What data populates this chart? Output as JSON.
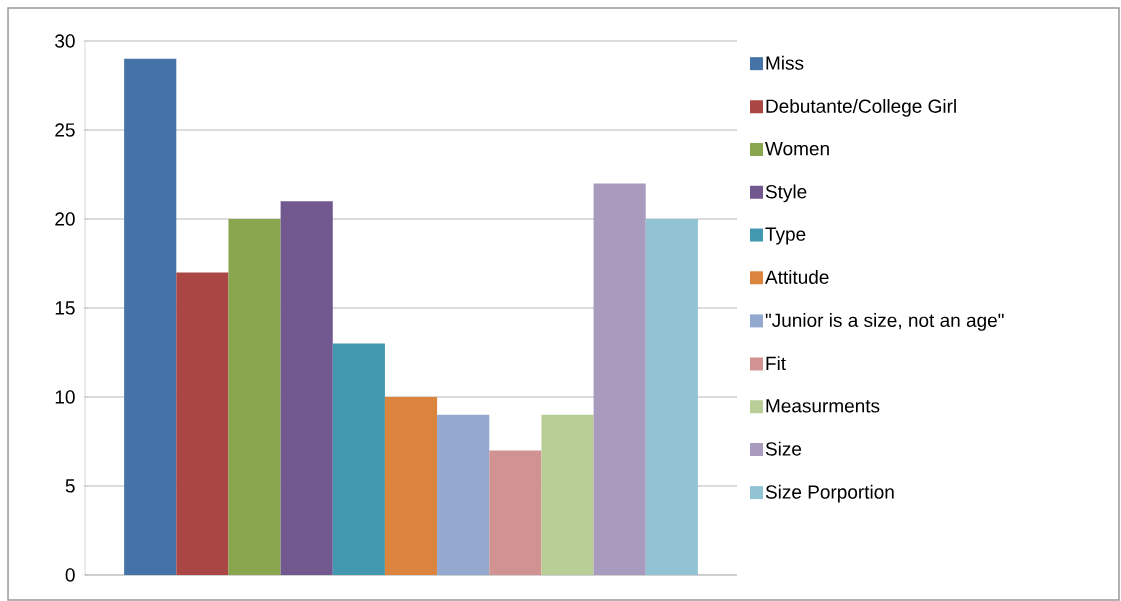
{
  "chart_data": {
    "type": "bar",
    "categories": [
      null
    ],
    "series": [
      {
        "name": "Miss",
        "color": "#4572a7",
        "values": [
          29
        ]
      },
      {
        "name": "Debutante/College Girl",
        "color": "#aa4643",
        "values": [
          17
        ]
      },
      {
        "name": "Women",
        "color": "#89a54e",
        "values": [
          20
        ]
      },
      {
        "name": "Style",
        "color": "#71588f",
        "values": [
          21
        ]
      },
      {
        "name": "Type",
        "color": "#4198af",
        "values": [
          13
        ]
      },
      {
        "name": "Attitude",
        "color": "#db843d",
        "values": [
          10
        ]
      },
      {
        "name": "\"Junior is a size, not an age\"",
        "color": "#93a9cf",
        "values": [
          9
        ]
      },
      {
        "name": "Fit",
        "color": "#d19392",
        "values": [
          7
        ]
      },
      {
        "name": "Measurments",
        "color": "#b9cd96",
        "values": [
          9
        ]
      },
      {
        "name": "Size",
        "color": "#a99bbd",
        "values": [
          22
        ]
      },
      {
        "name": "Size Porportion",
        "color": "#92c3d4",
        "values": [
          20
        ]
      }
    ],
    "ylim": [
      0,
      30
    ],
    "yticks": [
      0,
      5,
      10,
      15,
      20,
      25,
      30
    ],
    "grid": "y",
    "legend": "right"
  }
}
